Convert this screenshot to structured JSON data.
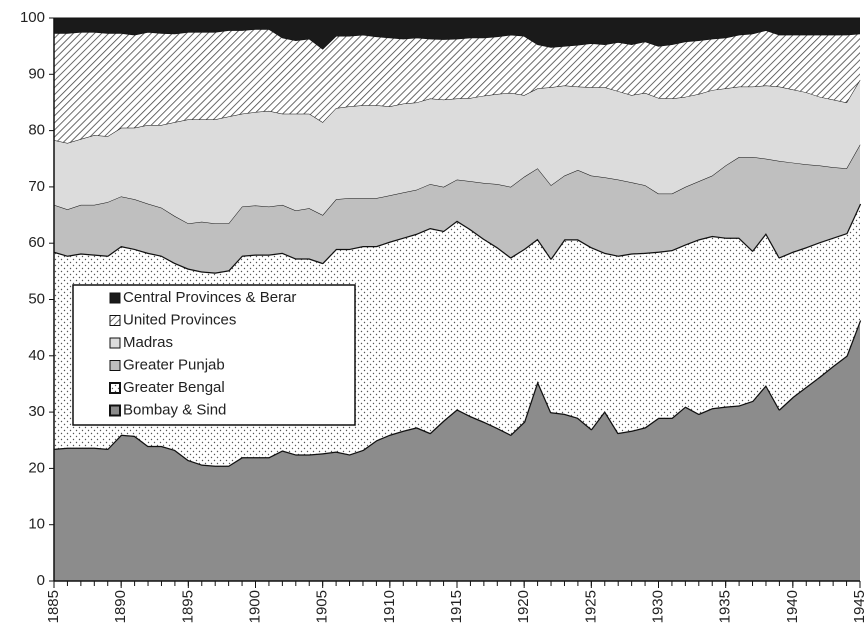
{
  "chart_data": {
    "type": "stacked_area",
    "x": [
      1885,
      1886,
      1887,
      1888,
      1889,
      1890,
      1891,
      1892,
      1893,
      1894,
      1895,
      1896,
      1897,
      1898,
      1899,
      1900,
      1901,
      1902,
      1903,
      1904,
      1905,
      1906,
      1907,
      1908,
      1909,
      1910,
      1911,
      1912,
      1913,
      1914,
      1915,
      1916,
      1917,
      1918,
      1919,
      1920,
      1921,
      1922,
      1923,
      1924,
      1925,
      1926,
      1927,
      1928,
      1929,
      1930,
      1931,
      1932,
      1933,
      1934,
      1935,
      1936,
      1937,
      1938,
      1939,
      1940,
      1941,
      1942,
      1943,
      1944,
      1945
    ],
    "series": [
      {
        "name": "Bombay & Sind",
        "color": "#8c8c8c",
        "line_width": 2.5,
        "values": [
          23.5,
          23.7,
          23.7,
          23.7,
          23.5,
          26,
          25.8,
          24,
          24,
          23.3,
          21.5,
          20.7,
          20.5,
          20.5,
          22,
          22,
          22,
          23.2,
          22.5,
          22.5,
          22.7,
          23,
          22.5,
          23.3,
          25,
          26,
          26.7,
          27.3,
          26.3,
          28.5,
          30.5,
          29.3,
          28.3,
          27.2,
          26,
          28.3,
          35.5,
          30,
          29.7,
          29,
          27,
          30.2,
          26.3,
          26.7,
          27.3,
          29,
          29,
          31,
          29.7,
          30.7,
          31,
          31.2,
          32,
          34.8,
          30.5,
          32.7,
          34.5,
          36.3,
          38.2,
          40,
          46.3
        ]
      },
      {
        "name": "Greater Bengal",
        "color": "#ffffff",
        "pattern": "dots",
        "line_width": 2.5,
        "values": [
          35.0,
          34.1,
          34.5,
          34.3,
          34.3,
          33.5,
          33.2,
          34.3,
          33.8,
          33.2,
          34.0,
          34.3,
          34.3,
          34.7,
          35.8,
          36.0,
          36.0,
          35.1,
          34.8,
          34.8,
          33.8,
          36.0,
          36.5,
          36.2,
          34.5,
          34.3,
          34.3,
          34.4,
          36.4,
          33.7,
          33.5,
          33.2,
          32.5,
          32.1,
          31.5,
          30.7,
          25.3,
          27.3,
          31.0,
          31.7,
          32.3,
          28.1,
          31.5,
          31.5,
          31.0,
          29.5,
          29.8,
          28.8,
          31.0,
          30.6,
          30.0,
          29.8,
          26.7,
          27.0,
          27.0,
          25.8,
          24.8,
          23.9,
          22.8,
          21.8,
          20.7
        ]
      },
      {
        "name": "Greater Punjab",
        "color": "#bfbfbf",
        "line_width": 1,
        "values": [
          8.3,
          8.2,
          8.6,
          8.8,
          9.5,
          8.8,
          8.8,
          8.7,
          8.5,
          8.3,
          8.0,
          8.8,
          8.7,
          8.3,
          8.7,
          8.7,
          8.5,
          8.5,
          8.5,
          8.9,
          8.5,
          8.8,
          9.0,
          8.5,
          8.5,
          8.2,
          8.0,
          7.8,
          7.8,
          7.8,
          7.3,
          8.5,
          9.9,
          11.2,
          12.5,
          12.8,
          12.5,
          13.0,
          11.3,
          12.3,
          12.7,
          13.4,
          13.5,
          12.6,
          12.0,
          10.3,
          10.0,
          10.2,
          10.3,
          10.7,
          12.8,
          14.3,
          16.6,
          13.2,
          17.1,
          15.8,
          14.7,
          13.6,
          12.5,
          11.5,
          10.5
        ]
      },
      {
        "name": "Madras",
        "color": "#dcdcdc",
        "line_width": 1,
        "values": [
          11.5,
          11.8,
          11.7,
          12.4,
          11.7,
          12.2,
          12.7,
          14.0,
          14.7,
          16.7,
          18.5,
          18.2,
          18.5,
          19.0,
          16.5,
          16.6,
          17.0,
          16.2,
          17.2,
          16.8,
          16.5,
          16.2,
          16.3,
          16.5,
          16.5,
          15.8,
          15.8,
          15.5,
          15.2,
          15.5,
          14.4,
          14.8,
          15.5,
          16.0,
          16.7,
          14.5,
          14.2,
          17.4,
          16.0,
          14.8,
          15.7,
          16.0,
          15.7,
          15.5,
          16.4,
          17.0,
          16.9,
          16.0,
          15.5,
          15.2,
          13.7,
          12.5,
          12.5,
          13.0,
          13.2,
          13.0,
          12.8,
          12.2,
          12.0,
          11.7,
          11.5
        ]
      },
      {
        "name": "United Provinces",
        "color": "#ffffff",
        "pattern": "hatch",
        "line_width": 1,
        "values": [
          19.0,
          19.5,
          19.0,
          18.3,
          18.3,
          16.8,
          16.5,
          16.5,
          16.3,
          15.7,
          15.5,
          15.5,
          15.5,
          15.3,
          14.8,
          14.7,
          14.5,
          13.5,
          13.0,
          13.3,
          13.0,
          12.8,
          12.5,
          12.5,
          12.2,
          12.2,
          11.5,
          11.5,
          10.6,
          10.7,
          10.6,
          10.7,
          10.3,
          10.2,
          10.3,
          10.5,
          7.8,
          7.1,
          7.0,
          7.4,
          7.8,
          7.6,
          8.7,
          9.0,
          9.1,
          9.2,
          9.6,
          9.8,
          9.5,
          9.1,
          9.0,
          9.2,
          9.4,
          9.8,
          9.2,
          9.7,
          10.2,
          11.0,
          11.5,
          12.0,
          8.2
        ]
      },
      {
        "name": "Central Provinces & Berar",
        "color": "#1a1a1a",
        "line_width": 1,
        "values": [
          2.7,
          2.7,
          2.5,
          2.5,
          2.7,
          2.7,
          3.0,
          2.5,
          2.7,
          2.8,
          2.5,
          2.5,
          2.5,
          2.2,
          2.2,
          2.0,
          2.0,
          3.5,
          4.0,
          3.7,
          5.5,
          3.2,
          3.2,
          3.0,
          3.3,
          3.5,
          3.7,
          3.5,
          3.7,
          3.8,
          3.7,
          3.5,
          3.5,
          3.3,
          3.0,
          3.2,
          4.7,
          5.2,
          5.0,
          4.8,
          4.5,
          4.7,
          4.3,
          4.7,
          4.2,
          5.0,
          4.7,
          4.2,
          4.0,
          3.7,
          3.5,
          3.0,
          2.8,
          2.2,
          3.0,
          3.0,
          3.0,
          3.0,
          3.0,
          3.0,
          2.8
        ]
      }
    ],
    "xlim": [
      1885,
      1945
    ],
    "xticks": [
      1885,
      1890,
      1895,
      1900,
      1905,
      1910,
      1915,
      1920,
      1925,
      1930,
      1935,
      1940,
      1945
    ],
    "ylim": [
      0,
      100
    ],
    "yticks": [
      0,
      10,
      20,
      30,
      40,
      50,
      60,
      70,
      80,
      90,
      100
    ],
    "grid": false,
    "legend": "left"
  }
}
